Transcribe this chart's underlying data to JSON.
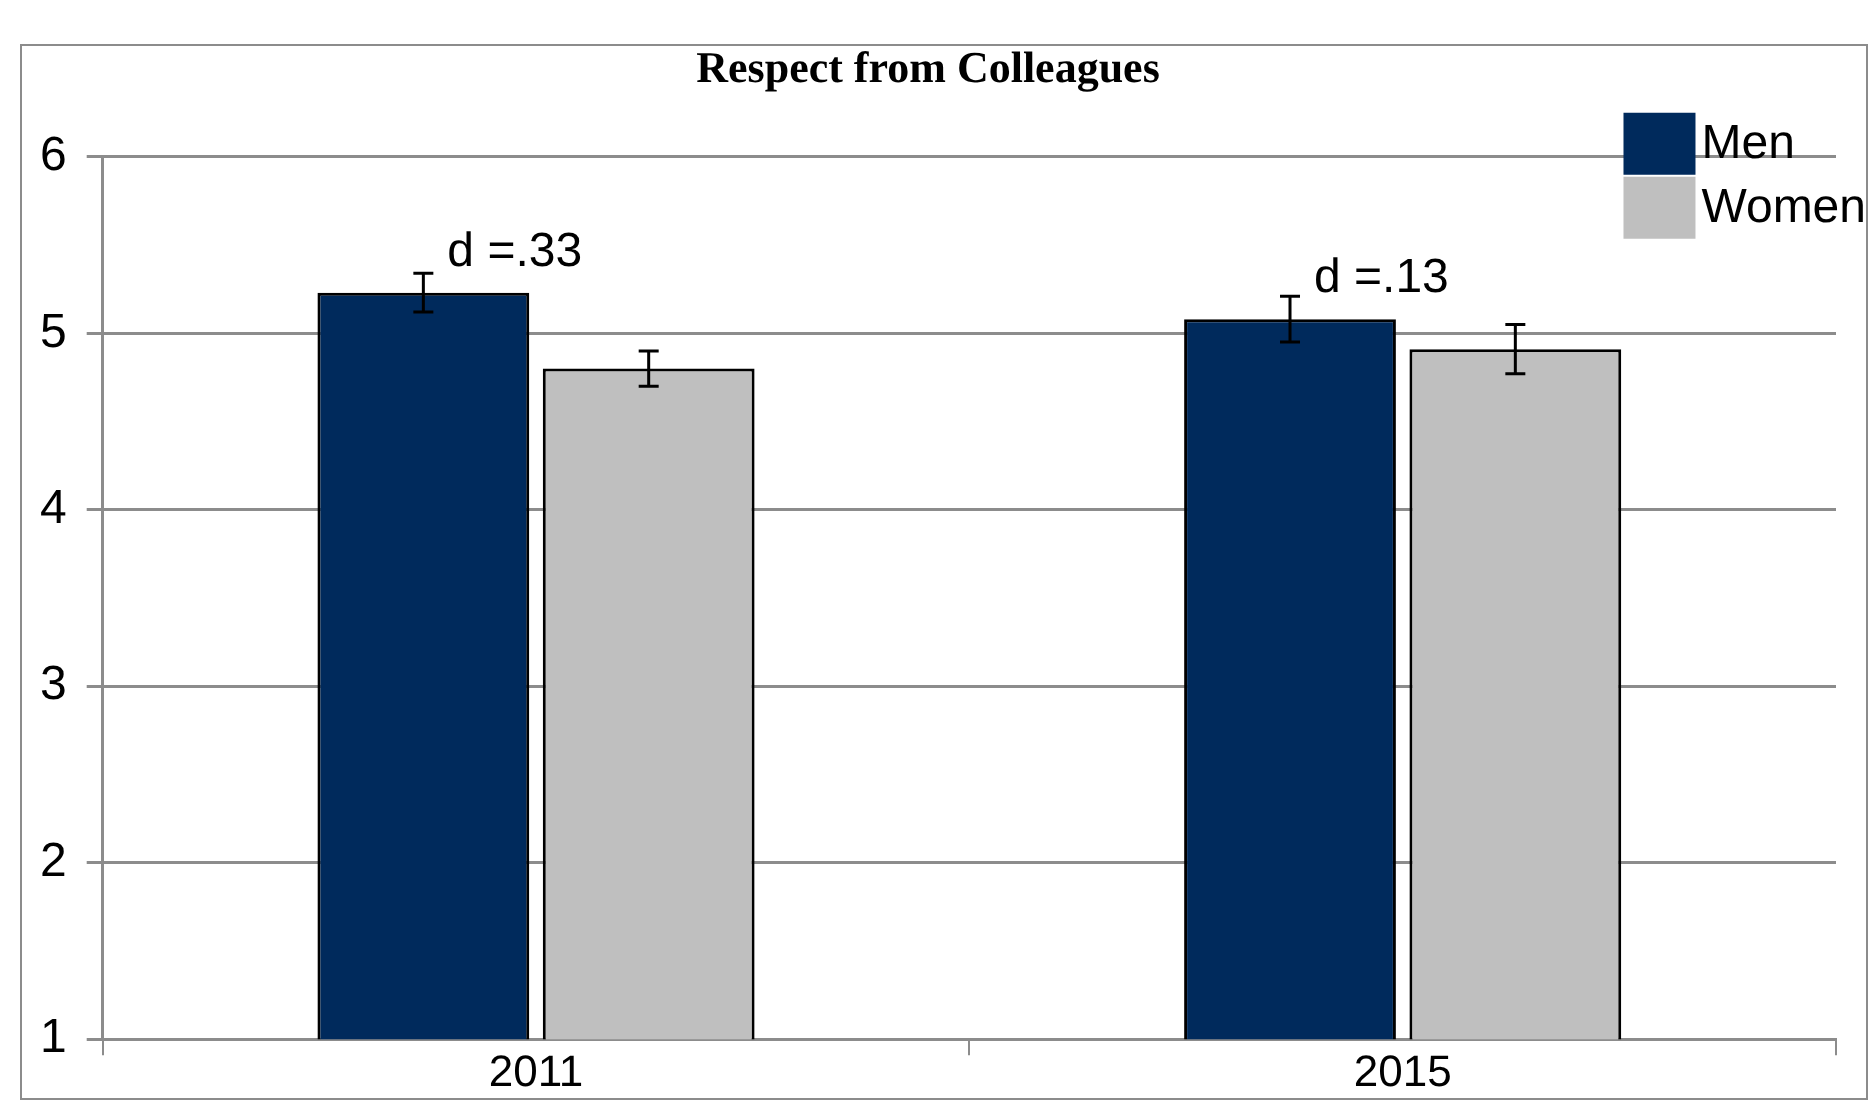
{
  "chart_data": {
    "type": "bar",
    "title": "Respect from Colleagues",
    "categories": [
      "2011",
      "2015"
    ],
    "series": [
      {
        "name": "Men",
        "color": "#002a5c",
        "values": [
          5.23,
          5.08
        ],
        "errors": [
          0.11,
          0.13
        ]
      },
      {
        "name": "Women",
        "color": "#bfbfbf",
        "values": [
          4.8,
          4.91
        ],
        "errors": [
          0.1,
          0.14
        ]
      }
    ],
    "ylim": [
      1,
      6
    ],
    "yticks": [
      1,
      2,
      3,
      4,
      5,
      6
    ],
    "grid": "y",
    "legend": "top right",
    "annotations": [
      "d =.33",
      "d =.13"
    ]
  }
}
